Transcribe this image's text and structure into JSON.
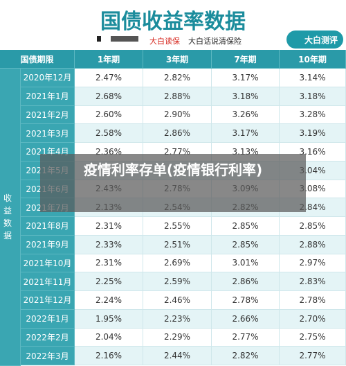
{
  "header": {
    "title": "国债收益率数据",
    "brand": "大白读保",
    "slogan": "大白话说清保险",
    "logo": "大白测评"
  },
  "table": {
    "columns": [
      "国债期限",
      "1年期",
      "3年期",
      "7年期",
      "10年期"
    ],
    "group_label": "收益数据",
    "rows": [
      [
        "2020年12月",
        "2.47%",
        "2.82%",
        "3.17%",
        "3.14%"
      ],
      [
        "2021年1月",
        "2.68%",
        "2.88%",
        "3.18%",
        "3.18%"
      ],
      [
        "2021年2月",
        "2.60%",
        "2.90%",
        "3.26%",
        "3.28%"
      ],
      [
        "2021年3月",
        "2.58%",
        "2.86%",
        "3.17%",
        "3.19%"
      ],
      [
        "2021年4月",
        "2.36%",
        "2.77%",
        "3.13%",
        "3.16%"
      ],
      [
        "2021年5月",
        null,
        null,
        null,
        "3.04%"
      ],
      [
        "2021年6月",
        "2.43%",
        "2.78%",
        "3.09%",
        "3.08%"
      ],
      [
        "2021年7月",
        "2.13%",
        "2.54%",
        "2.82%",
        "2.84%"
      ],
      [
        "2021年8月",
        "2.31%",
        "2.55%",
        "2.85%",
        "2.85%"
      ],
      [
        "2021年9月",
        "2.33%",
        "2.51%",
        "2.85%",
        "2.88%"
      ],
      [
        "2021年10月",
        "2.31%",
        "2.69%",
        "3.01%",
        "2.97%"
      ],
      [
        "2021年11月",
        "2.25%",
        "2.59%",
        "2.86%",
        "2.83%"
      ],
      [
        "2021年12月",
        "2.24%",
        "2.46%",
        "2.78%",
        "2.78%"
      ],
      [
        "2022年1月",
        "1.95%",
        "2.23%",
        "2.66%",
        "2.70%"
      ],
      [
        "2022年2月",
        "2.04%",
        "2.29%",
        "2.77%",
        "2.75%"
      ],
      [
        "2022年3月",
        "2.16%",
        "2.44%",
        "2.82%",
        "2.77%"
      ]
    ]
  },
  "overlay": "疫情利率存单(疫情银行利率)"
}
